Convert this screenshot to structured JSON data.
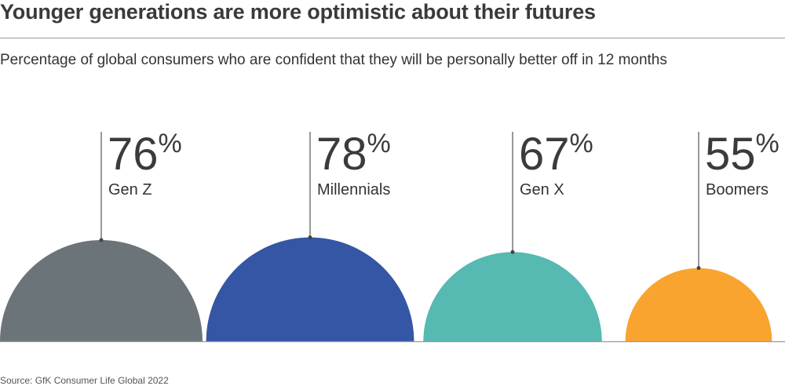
{
  "header": {
    "title": "Younger generations are more optimistic about their futures",
    "subtitle": "Percentage of global consumers who are confident that they will be personally better off in 12 months"
  },
  "footer": {
    "source": "Source: GfK Consumer Life Global 2022"
  },
  "chart_data": {
    "type": "bar",
    "shape": "semicircle",
    "categories": [
      "Gen Z",
      "Millennials",
      "Gen X",
      "Boomers"
    ],
    "values": [
      76,
      78,
      67,
      55
    ],
    "value_labels": [
      "76",
      "78",
      "67",
      "55"
    ],
    "unit": "%",
    "colors": [
      "#6b7478",
      "#3456a4",
      "#56b9b2",
      "#f9a42f"
    ],
    "grid": false,
    "legend": "none"
  }
}
